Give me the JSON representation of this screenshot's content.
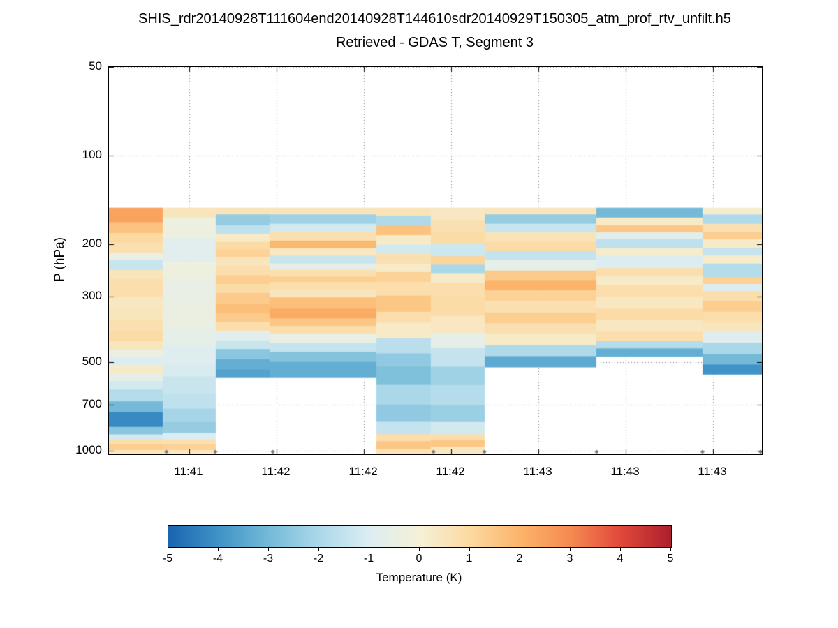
{
  "title_line1": "SHIS_rdr20140928T111604end20140928T144610sdr20140929T150305_atm_prof_rtv_unfilt.h5",
  "title_line2": "Retrieved - GDAS T, Segment 3",
  "axes": {
    "ylabel": "P (hPa)",
    "y_ticks": [
      50,
      100,
      200,
      300,
      500,
      700,
      1000
    ],
    "y_range": [
      50,
      1028
    ],
    "y_scale": "log",
    "x_tick_labels": [
      "11:41",
      "11:42",
      "11:42",
      "11:42",
      "11:43",
      "11:43",
      "11:43"
    ],
    "x_tick_positions": [
      0.123,
      0.2567,
      0.3904,
      0.5241,
      0.6578,
      0.7915,
      0.9251
    ],
    "grid": "dotted"
  },
  "colorbar": {
    "label": "Temperature (K)",
    "min": -5,
    "max": 5,
    "ticks": [
      -5,
      -4,
      -3,
      -2,
      -1,
      0,
      1,
      2,
      3,
      4,
      5
    ],
    "stops": [
      {
        "v": -5,
        "c": "#1a64b0"
      },
      {
        "v": -4,
        "c": "#3f93c6"
      },
      {
        "v": -3,
        "c": "#74bad8"
      },
      {
        "v": -2,
        "c": "#abd8e9"
      },
      {
        "v": -1,
        "c": "#dcedf2"
      },
      {
        "v": 0,
        "c": "#f5f1d7"
      },
      {
        "v": 1,
        "c": "#fcd9a1"
      },
      {
        "v": 2,
        "c": "#fbb469"
      },
      {
        "v": 3,
        "c": "#f68a51"
      },
      {
        "v": 4,
        "c": "#e0483a"
      },
      {
        "v": 5,
        "c": "#ad1f2d"
      }
    ]
  },
  "chart_data": {
    "type": "heatmap",
    "value_units": "K",
    "value_range": [
      -5,
      5
    ],
    "x_units": "time (fraction of axis width)",
    "y_units": "pressure (hPa, log scale)",
    "surface_marker_pressure": 1008,
    "surface_markers_x": [
      0.088,
      0.163,
      0.251,
      0.497,
      0.575,
      0.747,
      0.909,
      0.998
    ],
    "columns": [
      {
        "x0": 0.0,
        "x1": 0.0824,
        "bands": [
          [
            150,
            168,
            2.4
          ],
          [
            168,
            183,
            1.6
          ],
          [
            183,
            197,
            1.0
          ],
          [
            197,
            214,
            0.7
          ],
          [
            214,
            226,
            -0.5
          ],
          [
            226,
            244,
            -1.4
          ],
          [
            244,
            262,
            0.5
          ],
          [
            262,
            300,
            0.8
          ],
          [
            300,
            330,
            0.4
          ],
          [
            330,
            360,
            0.5
          ],
          [
            360,
            395,
            0.7
          ],
          [
            395,
            425,
            0.9
          ],
          [
            425,
            455,
            0.5
          ],
          [
            455,
            480,
            -0.4
          ],
          [
            480,
            512,
            -1.0
          ],
          [
            512,
            545,
            0.3
          ],
          [
            545,
            580,
            -0.6
          ],
          [
            580,
            620,
            -1.2
          ],
          [
            620,
            680,
            -1.8
          ],
          [
            680,
            740,
            -3.0
          ],
          [
            740,
            830,
            -4.2
          ],
          [
            830,
            880,
            -2.6
          ],
          [
            880,
            915,
            -1.2
          ],
          [
            915,
            950,
            0.8
          ],
          [
            950,
            995,
            1.3
          ],
          [
            995,
            1020,
            0.5
          ]
        ]
      },
      {
        "x0": 0.0824,
        "x1": 0.1636,
        "bands": [
          [
            150,
            162,
            0.5
          ],
          [
            162,
            190,
            -0.3
          ],
          [
            190,
            230,
            -0.8
          ],
          [
            230,
            262,
            -0.3
          ],
          [
            262,
            310,
            -0.5
          ],
          [
            310,
            380,
            -0.4
          ],
          [
            380,
            440,
            -0.6
          ],
          [
            440,
            512,
            -0.9
          ],
          [
            512,
            560,
            -1.1
          ],
          [
            560,
            640,
            -1.4
          ],
          [
            640,
            720,
            -1.6
          ],
          [
            720,
            800,
            -2.1
          ],
          [
            800,
            870,
            -2.4
          ],
          [
            870,
            915,
            -1.0
          ],
          [
            915,
            950,
            0.7
          ],
          [
            950,
            995,
            1.2
          ],
          [
            995,
            1020,
            0.4
          ]
        ]
      },
      {
        "x0": 0.1636,
        "x1": 0.246,
        "bands": [
          [
            150,
            158,
            0.6
          ],
          [
            158,
            172,
            -2.4
          ],
          [
            172,
            184,
            -1.6
          ],
          [
            184,
            196,
            0.3
          ],
          [
            196,
            208,
            0.9
          ],
          [
            208,
            220,
            1.2
          ],
          [
            220,
            236,
            0.5
          ],
          [
            236,
            254,
            0.8
          ],
          [
            254,
            272,
            1.3
          ],
          [
            272,
            292,
            0.9
          ],
          [
            292,
            318,
            1.4
          ],
          [
            318,
            342,
            1.7
          ],
          [
            342,
            366,
            1.4
          ],
          [
            366,
            392,
            0.8
          ],
          [
            392,
            424,
            -0.8
          ],
          [
            424,
            452,
            -1.4
          ],
          [
            452,
            490,
            -2.6
          ],
          [
            490,
            530,
            -3.3
          ],
          [
            530,
            565,
            -3.6
          ]
        ]
      },
      {
        "x0": 0.246,
        "x1": 0.4096,
        "bands": [
          [
            150,
            158,
            0.5
          ],
          [
            158,
            170,
            -2.2
          ],
          [
            170,
            181,
            -1.2
          ],
          [
            181,
            194,
            0.7
          ],
          [
            194,
            206,
            1.9
          ],
          [
            206,
            218,
            0.4
          ],
          [
            218,
            232,
            -1.4
          ],
          [
            232,
            243,
            -0.6
          ],
          [
            243,
            257,
            0.7
          ],
          [
            257,
            268,
            1.3
          ],
          [
            268,
            284,
            0.8
          ],
          [
            284,
            302,
            0.5
          ],
          [
            302,
            330,
            1.7
          ],
          [
            330,
            356,
            2.2
          ],
          [
            356,
            378,
            1.5
          ],
          [
            378,
            402,
            0.8
          ],
          [
            402,
            432,
            -0.5
          ],
          [
            432,
            462,
            -1.5
          ],
          [
            462,
            500,
            -2.7
          ],
          [
            500,
            565,
            -3.3
          ]
        ]
      },
      {
        "x0": 0.4096,
        "x1": 0.493,
        "bands": [
          [
            150,
            160,
            0.6
          ],
          [
            160,
            172,
            -1.9
          ],
          [
            172,
            186,
            1.6
          ],
          [
            186,
            200,
            0.3
          ],
          [
            200,
            214,
            -1.2
          ],
          [
            214,
            232,
            0.7
          ],
          [
            232,
            248,
            0.3
          ],
          [
            248,
            268,
            1.2
          ],
          [
            268,
            298,
            0.8
          ],
          [
            298,
            338,
            1.5
          ],
          [
            338,
            368,
            0.8
          ],
          [
            368,
            416,
            0.3
          ],
          [
            416,
            468,
            -1.7
          ],
          [
            468,
            518,
            -2.5
          ],
          [
            518,
            598,
            -2.8
          ],
          [
            598,
            698,
            -2.0
          ],
          [
            698,
            798,
            -2.5
          ],
          [
            798,
            878,
            -1.5
          ],
          [
            878,
            928,
            0.8
          ],
          [
            928,
            988,
            1.5
          ],
          [
            988,
            1020,
            0.6
          ]
        ]
      },
      {
        "x0": 0.493,
        "x1": 0.5754,
        "bands": [
          [
            150,
            166,
            0.4
          ],
          [
            166,
            182,
            0.7
          ],
          [
            182,
            199,
            0.9
          ],
          [
            199,
            219,
            -1.3
          ],
          [
            219,
            234,
            1.1
          ],
          [
            234,
            250,
            -2.0
          ],
          [
            250,
            270,
            0.3
          ],
          [
            270,
            299,
            0.8
          ],
          [
            299,
            349,
            0.9
          ],
          [
            349,
            399,
            0.4
          ],
          [
            399,
            449,
            -0.6
          ],
          [
            449,
            519,
            -1.5
          ],
          [
            519,
            599,
            -2.2
          ],
          [
            599,
            699,
            -1.8
          ],
          [
            699,
            799,
            -2.3
          ],
          [
            799,
            879,
            -1.2
          ],
          [
            879,
            919,
            0.8
          ],
          [
            919,
            969,
            1.5
          ],
          [
            969,
            1020,
            0.4
          ]
        ]
      },
      {
        "x0": 0.5754,
        "x1": 0.7465,
        "bands": [
          [
            150,
            158,
            0.5
          ],
          [
            158,
            170,
            -2.4
          ],
          [
            170,
            182,
            -1.4
          ],
          [
            182,
            196,
            0.6
          ],
          [
            196,
            210,
            0.9
          ],
          [
            210,
            226,
            -1.5
          ],
          [
            226,
            245,
            -0.6
          ],
          [
            245,
            264,
            1.4
          ],
          [
            264,
            286,
            2.0
          ],
          [
            286,
            310,
            1.2
          ],
          [
            310,
            340,
            0.7
          ],
          [
            340,
            370,
            1.3
          ],
          [
            370,
            400,
            0.7
          ],
          [
            400,
            438,
            0.3
          ],
          [
            438,
            478,
            -1.9
          ],
          [
            478,
            520,
            -3.4
          ]
        ]
      },
      {
        "x0": 0.7465,
        "x1": 0.9091,
        "bands": [
          [
            150,
            162,
            -3.0
          ],
          [
            162,
            172,
            0.3
          ],
          [
            172,
            182,
            1.5
          ],
          [
            182,
            192,
            -0.8
          ],
          [
            192,
            206,
            -1.6
          ],
          [
            206,
            218,
            0.2
          ],
          [
            218,
            240,
            -1.0
          ],
          [
            240,
            256,
            0.8
          ],
          [
            256,
            274,
            0.3
          ],
          [
            274,
            300,
            0.8
          ],
          [
            300,
            330,
            0.4
          ],
          [
            330,
            360,
            0.9
          ],
          [
            360,
            395,
            0.4
          ],
          [
            395,
            425,
            0.8
          ],
          [
            425,
            450,
            -1.8
          ],
          [
            450,
            478,
            -3.3
          ]
        ]
      },
      {
        "x0": 0.9091,
        "x1": 1.0,
        "bands": [
          [
            150,
            158,
            0.2
          ],
          [
            158,
            170,
            -1.9
          ],
          [
            170,
            181,
            0.7
          ],
          [
            181,
            192,
            1.3
          ],
          [
            192,
            205,
            0.3
          ],
          [
            205,
            218,
            -1.5
          ],
          [
            218,
            232,
            0.2
          ],
          [
            232,
            258,
            -1.8
          ],
          [
            258,
            272,
            1.2
          ],
          [
            272,
            288,
            -1.0
          ],
          [
            288,
            310,
            0.8
          ],
          [
            310,
            338,
            1.3
          ],
          [
            338,
            368,
            0.8
          ],
          [
            368,
            395,
            0.5
          ],
          [
            395,
            430,
            -0.9
          ],
          [
            430,
            470,
            -2.0
          ],
          [
            470,
            510,
            -3.0
          ],
          [
            510,
            550,
            -4.0
          ]
        ]
      }
    ]
  }
}
